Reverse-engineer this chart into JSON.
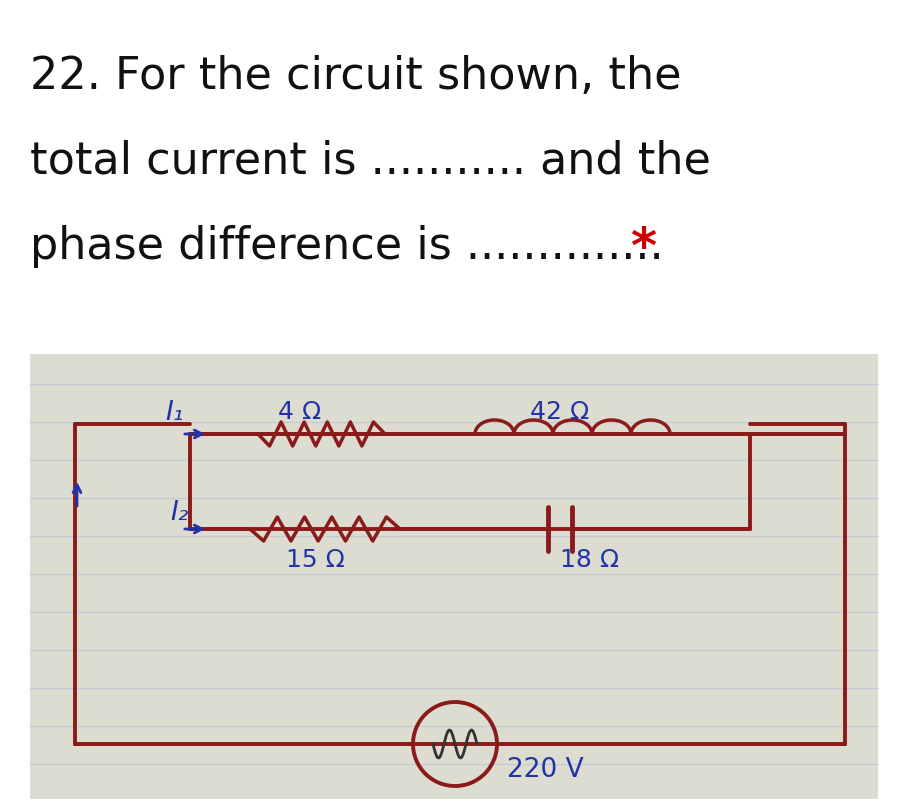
{
  "bg_color": "#ffffff",
  "photo_bg": "#dcdcd0",
  "lined_color": "#b8c4d8",
  "circuit_line_color": "#8b1a1a",
  "label_color": "#2233aa",
  "star_color": "#cc0000",
  "text_color": "#111111",
  "title_fontsize": 32,
  "label_fontsize": 17,
  "line1": "22. For the circuit shown, the",
  "line2": "total current is ........... and the",
  "line3": "phase difference is .............. ",
  "star": "*",
  "v220": "220 V",
  "r1": "4 Ω",
  "l1": "42 Ω",
  "r2": "15 Ω",
  "c1": "18 Ω",
  "I1": "I₁",
  "I2": "I₂"
}
